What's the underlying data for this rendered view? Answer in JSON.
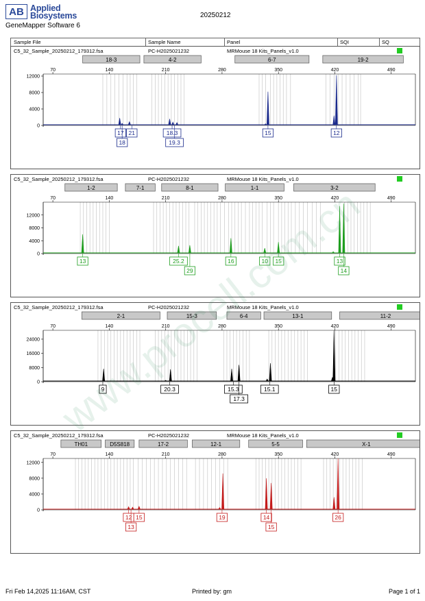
{
  "header": {
    "logo_mark": "AB",
    "logo_line1": "Applied",
    "logo_line2": "Biosystems",
    "software": "GeneMapper Software 6",
    "report_date": "20250212",
    "columns": [
      "Sample File",
      "Sample Name",
      "Panel",
      "SQI",
      "SQ"
    ]
  },
  "footer": {
    "datetime": "Fri Feb 14,2025 11:16AM, CST",
    "printed_by": "Printed by: gm",
    "page": "Page 1 of 1"
  },
  "watermark": "www.procell.com.cn",
  "colors": {
    "blue": "#1a2a8c",
    "green": "#1e9e1e",
    "black": "#000000",
    "red": "#c41a1a",
    "status_ok": "#22cc22",
    "bin": "#c8c8c8",
    "marker": "#c8c8c8"
  },
  "chart_data": [
    {
      "type": "line",
      "sample_file": "C5_32_Sample_20250212_179312.fsa",
      "sample_name": "PC-H2025021232",
      "panel": "MRMouse 18 Kits_Panels_v1.0",
      "color": "#1a2a8c",
      "x_ticks": [
        70,
        140,
        210,
        280,
        350,
        420,
        490
      ],
      "xlim": [
        58,
        520
      ],
      "y_ticks": [
        0,
        4000,
        8000,
        12000
      ],
      "ylim": [
        0,
        12500
      ],
      "markers": [
        {
          "label": "18-3",
          "from": 107,
          "to": 178
        },
        {
          "label": "4-2",
          "from": 183,
          "to": 254
        },
        {
          "label": "6-7",
          "from": 296,
          "to": 388
        },
        {
          "label": "19-2",
          "from": 405,
          "to": 505
        }
      ],
      "bins": [
        132,
        137,
        142,
        147,
        152,
        157,
        162,
        166,
        170,
        174,
        193,
        197,
        201,
        205,
        209,
        213,
        217,
        221,
        225,
        229,
        233,
        326,
        330,
        334,
        340,
        344,
        348,
        352,
        356,
        360,
        365,
        409,
        414,
        419,
        424,
        429,
        434,
        439,
        444,
        449,
        452
      ],
      "peaks": [
        {
          "x": 153,
          "h": 1800
        },
        {
          "x": 156,
          "h": 500
        },
        {
          "x": 165,
          "h": 900
        },
        {
          "x": 215,
          "h": 1600
        },
        {
          "x": 219,
          "h": 800
        },
        {
          "x": 224,
          "h": 700
        },
        {
          "x": 334,
          "h": 400
        },
        {
          "x": 337,
          "h": 8200
        },
        {
          "x": 419,
          "h": 2400
        },
        {
          "x": 422,
          "h": 12200
        }
      ],
      "labels": [
        {
          "text": "17",
          "x": 154,
          "row": 0
        },
        {
          "text": "18",
          "x": 156,
          "row": 1
        },
        {
          "text": "21",
          "x": 168,
          "row": 0
        },
        {
          "text": "18.3",
          "x": 218,
          "row": 0
        },
        {
          "text": "19.3",
          "x": 221,
          "row": 1
        },
        {
          "text": "15",
          "x": 337,
          "row": 0
        },
        {
          "text": "12",
          "x": 422,
          "row": 0
        }
      ]
    },
    {
      "type": "line",
      "sample_file": "C5_32_Sample_20250212_179312.fsa",
      "sample_name": "PC-H2025021232",
      "panel": "MRMouse 18 Kits_Panels_v1.0",
      "color": "#1e9e1e",
      "x_ticks": [
        70,
        140,
        210,
        280,
        350,
        420,
        490
      ],
      "xlim": [
        58,
        520
      ],
      "y_ticks": [
        0,
        4000,
        8000,
        12000
      ],
      "ylim": [
        0,
        16000
      ],
      "markers": [
        {
          "label": "1-2",
          "from": 85,
          "to": 150
        },
        {
          "label": "7-1",
          "from": 160,
          "to": 197
        },
        {
          "label": "8-1",
          "from": 205,
          "to": 275
        },
        {
          "label": "1-1",
          "from": 284,
          "to": 357
        },
        {
          "label": "3-2",
          "from": 369,
          "to": 470
        }
      ],
      "bins": [
        104,
        108,
        112,
        116,
        120,
        124,
        128,
        132,
        136,
        140,
        195,
        199,
        203,
        207,
        211,
        215,
        219,
        223,
        227,
        231,
        235,
        239,
        246,
        250,
        254,
        258,
        262,
        266,
        270,
        274,
        278,
        283,
        288,
        292,
        296,
        300,
        304,
        309,
        314,
        318,
        322,
        326,
        330,
        336,
        340,
        344,
        350,
        354,
        358,
        362,
        366,
        371,
        376,
        381,
        386,
        392,
        397,
        402,
        432,
        436,
        440,
        444,
        448,
        452,
        456,
        460,
        464
      ],
      "peaks": [
        {
          "x": 107,
          "h": 6000
        },
        {
          "x": 226,
          "h": 2400
        },
        {
          "x": 240,
          "h": 2600
        },
        {
          "x": 291,
          "h": 4800
        },
        {
          "x": 333,
          "h": 1700
        },
        {
          "x": 350,
          "h": 3600
        },
        {
          "x": 418,
          "h": 600
        },
        {
          "x": 426,
          "h": 14800
        },
        {
          "x": 431,
          "h": 15600
        }
      ],
      "labels": [
        {
          "text": "13",
          "x": 107,
          "row": 0
        },
        {
          "text": "25.2",
          "x": 226,
          "row": 0
        },
        {
          "text": "29",
          "x": 240,
          "row": 1
        },
        {
          "text": "16",
          "x": 291,
          "row": 0
        },
        {
          "text": "10",
          "x": 333,
          "row": 0
        },
        {
          "text": "15",
          "x": 350,
          "row": 0
        },
        {
          "text": "13",
          "x": 426,
          "row": 0
        },
        {
          "text": "14",
          "x": 431,
          "row": 1
        }
      ]
    },
    {
      "type": "line",
      "sample_file": "C5_32_Sample_20250212_179312.fsa",
      "sample_name": "PC-H2025021232",
      "panel": "MRMouse 18 Kits_Panels_v1.0",
      "color": "#000000",
      "x_ticks": [
        70,
        140,
        210,
        280,
        350,
        420,
        490
      ],
      "xlim": [
        58,
        520
      ],
      "y_ticks": [
        0,
        8000,
        16000,
        24000
      ],
      "ylim": [
        0,
        29000
      ],
      "markers": [
        {
          "label": "2-1",
          "from": 106,
          "to": 203
        },
        {
          "label": "15-3",
          "from": 212,
          "to": 273
        },
        {
          "label": "6-4",
          "from": 286,
          "to": 328
        },
        {
          "label": "13-1",
          "from": 332,
          "to": 416
        },
        {
          "label": "11-2",
          "from": 426,
          "to": 540
        }
      ],
      "bins": [
        126,
        130,
        134,
        138,
        142,
        146,
        150,
        154,
        158,
        162,
        166,
        170,
        174,
        178,
        197,
        201,
        205,
        209,
        213,
        217,
        221,
        225,
        229,
        233,
        237,
        241,
        245,
        249,
        282,
        286,
        290,
        294,
        298,
        302,
        306,
        310,
        314,
        338,
        342,
        346,
        350,
        354,
        358,
        362,
        366,
        370,
        374,
        378,
        382,
        386,
        421,
        425,
        429,
        433,
        437,
        441,
        445,
        449,
        453,
        457
      ],
      "peaks": [
        {
          "x": 133,
          "h": 7300
        },
        {
          "x": 210,
          "h": 800
        },
        {
          "x": 216,
          "h": 7000
        },
        {
          "x": 292,
          "h": 7300
        },
        {
          "x": 301,
          "h": 9500
        },
        {
          "x": 336,
          "h": 1500
        },
        {
          "x": 340,
          "h": 10500
        },
        {
          "x": 417,
          "h": 2400
        },
        {
          "x": 419,
          "h": 29000
        }
      ],
      "labels": [
        {
          "text": "9",
          "x": 132,
          "row": 0
        },
        {
          "text": "20.3",
          "x": 215,
          "row": 0
        },
        {
          "text": "15.3",
          "x": 294,
          "row": 0
        },
        {
          "text": "17.3",
          "x": 301,
          "row": 1
        },
        {
          "text": "15.1",
          "x": 339,
          "row": 0
        },
        {
          "text": "15",
          "x": 419,
          "row": 0
        }
      ]
    },
    {
      "type": "line",
      "sample_file": "C5_32_Sample_20250212_179312.fsa",
      "sample_name": "PC-H2025021232",
      "panel": "MRMouse 18 Kits_Panels_v1.0",
      "color": "#c41a1a",
      "x_ticks": [
        70,
        140,
        210,
        280,
        350,
        420,
        490
      ],
      "xlim": [
        58,
        520
      ],
      "y_ticks": [
        0,
        4000,
        8000,
        12000
      ],
      "ylim": [
        0,
        13000
      ],
      "markers": [
        {
          "label": "TH01",
          "from": 80,
          "to": 130
        },
        {
          "label": "D5S818",
          "from": 135,
          "to": 171
        },
        {
          "label": "17-2",
          "from": 177,
          "to": 237
        },
        {
          "label": "12-1",
          "from": 243,
          "to": 302
        },
        {
          "label": "5-5",
          "from": 313,
          "to": 380
        },
        {
          "label": "X-1",
          "from": 385,
          "to": 533
        }
      ],
      "bins": [
        98,
        102,
        106,
        110,
        114,
        118,
        122,
        126,
        130,
        134,
        138,
        142,
        146,
        150,
        154,
        158,
        162,
        166,
        170,
        176,
        181,
        186,
        191,
        196,
        201,
        206,
        211,
        216,
        221,
        226,
        231,
        236,
        247,
        252,
        257,
        262,
        267,
        272,
        277,
        282,
        287,
        322,
        326,
        330,
        334,
        338,
        342,
        346,
        350,
        354,
        358,
        362,
        366,
        370,
        374,
        378,
        406,
        410,
        414,
        418,
        422,
        426,
        430,
        434,
        438,
        442,
        446,
        450,
        454
      ],
      "peaks": [
        {
          "x": 164,
          "h": 800
        },
        {
          "x": 169,
          "h": 700
        },
        {
          "x": 177,
          "h": 900
        },
        {
          "x": 277,
          "h": 600
        },
        {
          "x": 281,
          "h": 9200
        },
        {
          "x": 335,
          "h": 8000
        },
        {
          "x": 341,
          "h": 6800
        },
        {
          "x": 419,
          "h": 3200
        },
        {
          "x": 424,
          "h": 13000
        }
      ],
      "labels": [
        {
          "text": "12",
          "x": 164,
          "row": 0
        },
        {
          "text": "13",
          "x": 167,
          "row": 1
        },
        {
          "text": "15",
          "x": 177,
          "row": 0
        },
        {
          "text": "19",
          "x": 280,
          "row": 0
        },
        {
          "text": "14",
          "x": 335,
          "row": 0
        },
        {
          "text": "15",
          "x": 341,
          "row": 1
        },
        {
          "text": "26",
          "x": 424,
          "row": 0
        }
      ]
    }
  ]
}
